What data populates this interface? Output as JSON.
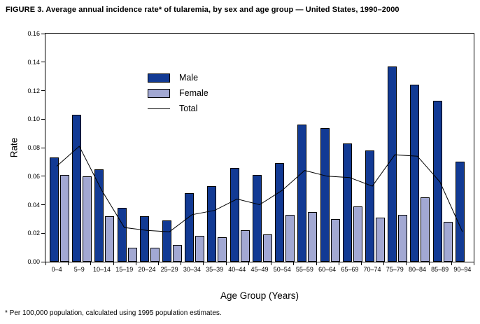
{
  "figure": {
    "title": "FIGURE 3. Average annual incidence rate* of tularemia, by sex and age group — United States, 1990–2000",
    "ylabel": "Rate",
    "xlabel": "Age Group (Years)",
    "footnote": "* Per 100,000 population, calculated using 1995 population estimates."
  },
  "colors": {
    "male_bar": "#123a94",
    "female_bar": "#a2a8d3",
    "total_line": "#000000",
    "axis": "#000000",
    "background": "#ffffff"
  },
  "chart_data": {
    "type": "bar",
    "title": "FIGURE 3. Average annual incidence rate* of tularemia, by sex and age group — United States, 1990–2000",
    "xlabel": "Age Group (Years)",
    "ylabel": "Rate",
    "ylim": [
      0,
      0.16
    ],
    "ytick_step": 0.02,
    "ytick_labels": [
      "0.00",
      "0.02",
      "0.04",
      "0.06",
      "0.08",
      "0.10",
      "0.12",
      "0.14",
      "0.16"
    ],
    "grid": false,
    "legend_position": "inside upper-left",
    "categories": [
      "0–4",
      "5–9",
      "10–14",
      "15–19",
      "20–24",
      "25–29",
      "30–34",
      "35–39",
      "40–44",
      "45–49",
      "50–54",
      "55–59",
      "60–64",
      "65–69",
      "70–74",
      "75–79",
      "80–84",
      "85–89",
      "90–94"
    ],
    "series": [
      {
        "name": "Male",
        "type": "bar",
        "color": "#123a94",
        "values": [
          0.073,
          0.103,
          0.065,
          0.038,
          0.032,
          0.029,
          0.048,
          0.053,
          0.066,
          0.061,
          0.069,
          0.096,
          0.094,
          0.083,
          0.078,
          0.137,
          0.124,
          0.113,
          0.07
        ]
      },
      {
        "name": "Female",
        "type": "bar",
        "color": "#a2a8d3",
        "values": [
          0.061,
          0.06,
          0.032,
          0.01,
          0.01,
          0.012,
          0.018,
          0.017,
          0.022,
          0.019,
          0.033,
          0.035,
          0.03,
          0.039,
          0.031,
          0.033,
          0.045,
          0.028,
          0
        ]
      },
      {
        "name": "Total",
        "type": "line",
        "color": "#000000",
        "values": [
          0.067,
          0.081,
          0.05,
          0.024,
          0.022,
          0.021,
          0.033,
          0.036,
          0.044,
          0.04,
          0.05,
          0.064,
          0.06,
          0.059,
          0.053,
          0.075,
          0.074,
          0.056,
          0.021
        ]
      }
    ]
  }
}
